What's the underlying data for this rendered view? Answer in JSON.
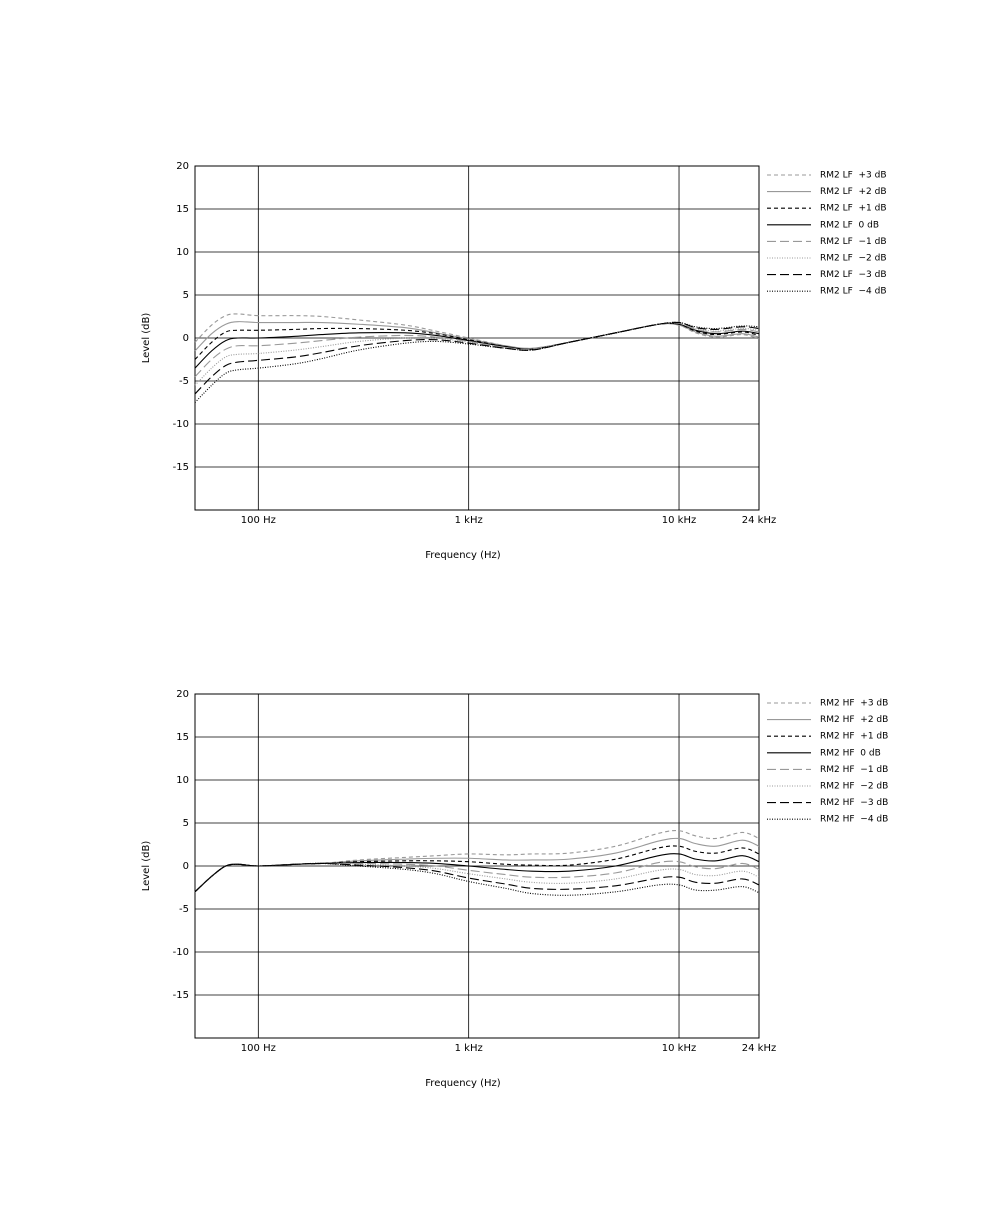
{
  "chart_data": [
    {
      "type": "line",
      "xlabel": "Frequency (Hz)",
      "ylabel": "Level (dB)",
      "xscale": "log",
      "grid": true,
      "xlim": [
        50,
        24000
      ],
      "ylim": [
        -20,
        20
      ],
      "xticks": [
        {
          "value": 100,
          "label": "100 Hz"
        },
        {
          "value": 1000,
          "label": "1 kHz"
        },
        {
          "value": 10000,
          "label": "10 kHz"
        },
        {
          "value": 24000,
          "label": "24 kHz"
        }
      ],
      "yticks": [
        20,
        15,
        10,
        5,
        0,
        -5,
        -10,
        -15
      ],
      "x": [
        50,
        60,
        70,
        80,
        100,
        150,
        200,
        300,
        500,
        700,
        1000,
        1500,
        2000,
        3000,
        5000,
        8000,
        10000,
        12000,
        15000,
        20000,
        24000
      ],
      "series": [
        {
          "name": "RM2 LF  +3 dB",
          "color": "#999999",
          "style": "dashed",
          "values": [
            -0.5,
            1.5,
            2.6,
            2.8,
            2.6,
            2.6,
            2.5,
            2.1,
            1.5,
            0.8,
            0,
            -0.9,
            -1.2,
            -0.5,
            0.6,
            1.6,
            1.5,
            0.6,
            0.1,
            0.4,
            -0.1
          ]
        },
        {
          "name": "RM2 LF  +2 dB",
          "color": "#999999",
          "style": "solid",
          "values": [
            -1.5,
            0.5,
            1.6,
            1.9,
            1.8,
            1.8,
            1.8,
            1.6,
            1.2,
            0.6,
            -0.1,
            -0.9,
            -1.2,
            -0.5,
            0.6,
            1.6,
            1.5,
            0.7,
            0.2,
            0.5,
            0.1
          ]
        },
        {
          "name": "RM2 LF  +1 dB",
          "color": "#000000",
          "style": "dashed",
          "values": [
            -2.5,
            -0.5,
            0.7,
            0.9,
            0.9,
            1.0,
            1.1,
            1.1,
            0.9,
            0.5,
            -0.2,
            -1,
            -1.3,
            -0.5,
            0.6,
            1.6,
            1.6,
            0.8,
            0.4,
            0.7,
            0.3
          ]
        },
        {
          "name": "RM2 LF  0 dB",
          "color": "#000000",
          "style": "solid",
          "values": [
            -3.5,
            -1.5,
            -0.3,
            0,
            0,
            0.2,
            0.4,
            0.6,
            0.6,
            0.3,
            -0.3,
            -1,
            -1.3,
            -0.5,
            0.6,
            1.6,
            1.6,
            0.9,
            0.5,
            0.8,
            0.5
          ]
        },
        {
          "name": "RM2 LF  −1 dB",
          "color": "#999999",
          "style": "long-dash",
          "values": [
            -4.5,
            -2.5,
            -1.3,
            -0.9,
            -0.9,
            -0.6,
            -0.3,
            0.1,
            0.3,
            0.1,
            -0.4,
            -1.1,
            -1.3,
            -0.5,
            0.6,
            1.6,
            1.7,
            1.0,
            0.7,
            1.0,
            0.7
          ]
        },
        {
          "name": "RM2 LF  −2 dB",
          "color": "#999999",
          "style": "dotted",
          "values": [
            -5.5,
            -3.5,
            -2.2,
            -1.9,
            -1.8,
            -1.4,
            -1.0,
            -0.4,
            0,
            0,
            -0.5,
            -1.1,
            -1.4,
            -0.5,
            0.6,
            1.6,
            1.7,
            1.1,
            0.8,
            1.1,
            0.9
          ]
        },
        {
          "name": "RM2 LF  −3 dB",
          "color": "#000000",
          "style": "long-dash",
          "values": [
            -6.5,
            -4.5,
            -3.2,
            -2.8,
            -2.6,
            -2.2,
            -1.7,
            -0.9,
            -0.3,
            -0.2,
            -0.6,
            -1.2,
            -1.4,
            -0.5,
            0.6,
            1.6,
            1.8,
            1.2,
            1.0,
            1.3,
            1.1
          ]
        },
        {
          "name": "RM2 LF  −4 dB",
          "color": "#000000",
          "style": "dotted",
          "values": [
            -7.5,
            -5.5,
            -4.1,
            -3.7,
            -3.5,
            -3.0,
            -2.4,
            -1.4,
            -0.6,
            -0.4,
            -0.7,
            -1.2,
            -1.4,
            -0.5,
            0.6,
            1.6,
            1.8,
            1.3,
            1.1,
            1.4,
            1.3
          ]
        }
      ]
    },
    {
      "type": "line",
      "xlabel": "Frequency (Hz)",
      "ylabel": "Level (dB)",
      "xscale": "log",
      "grid": true,
      "xlim": [
        50,
        24000
      ],
      "ylim": [
        -20,
        20
      ],
      "xticks": [
        {
          "value": 100,
          "label": "100 Hz"
        },
        {
          "value": 1000,
          "label": "1 kHz"
        },
        {
          "value": 10000,
          "label": "10 kHz"
        },
        {
          "value": 24000,
          "label": "24 kHz"
        }
      ],
      "yticks": [
        20,
        15,
        10,
        5,
        0,
        -5,
        -10,
        -15
      ],
      "x": [
        50,
        60,
        70,
        80,
        100,
        150,
        200,
        300,
        500,
        700,
        1000,
        1500,
        2000,
        3000,
        5000,
        8000,
        10000,
        12000,
        15000,
        20000,
        24000
      ],
      "series": [
        {
          "name": "RM2 HF  +3 dB",
          "color": "#999999",
          "style": "dashed",
          "values": [
            -3,
            -1.2,
            0,
            0.2,
            0,
            0.2,
            0.3,
            0.7,
            1.0,
            1.2,
            1.4,
            1.3,
            1.4,
            1.5,
            2.3,
            3.8,
            4.1,
            3.5,
            3.2,
            3.9,
            3.2
          ]
        },
        {
          "name": "RM2 HF  +2 dB",
          "color": "#999999",
          "style": "solid",
          "values": [
            -3,
            -1.2,
            0,
            0.2,
            0,
            0.2,
            0.3,
            0.6,
            0.8,
            0.9,
            0.9,
            0.7,
            0.7,
            0.8,
            1.5,
            2.9,
            3.2,
            2.6,
            2.3,
            3.0,
            2.3
          ]
        },
        {
          "name": "RM2 HF  +1 dB",
          "color": "#000000",
          "style": "dashed",
          "values": [
            -3,
            -1.2,
            0,
            0.2,
            0,
            0.2,
            0.3,
            0.5,
            0.6,
            0.6,
            0.5,
            0.2,
            0.1,
            0.1,
            0.8,
            2.1,
            2.3,
            1.7,
            1.5,
            2.1,
            1.4
          ]
        },
        {
          "name": "RM2 HF  0 dB",
          "color": "#000000",
          "style": "solid",
          "values": [
            -3,
            -1.2,
            0,
            0.2,
            0,
            0.2,
            0.3,
            0.4,
            0.4,
            0.3,
            0,
            -0.4,
            -0.6,
            -0.6,
            0,
            1.2,
            1.4,
            0.8,
            0.6,
            1.2,
            0.5
          ]
        },
        {
          "name": "RM2 HF  −1 dB",
          "color": "#999999",
          "style": "long-dash",
          "values": [
            -3,
            -1.2,
            0,
            0.2,
            0,
            0.2,
            0.3,
            0.3,
            0.2,
            0,
            -0.5,
            -1.0,
            -1.3,
            -1.3,
            -0.8,
            0.4,
            0.5,
            -0.1,
            -0.3,
            0.3,
            -0.4
          ]
        },
        {
          "name": "RM2 HF  −2 dB",
          "color": "#999999",
          "style": "dotted",
          "values": [
            -3,
            -1.2,
            0,
            0.2,
            0,
            0.2,
            0.3,
            0.2,
            0,
            -0.3,
            -0.9,
            -1.5,
            -1.9,
            -2.0,
            -1.5,
            -0.5,
            -0.4,
            -1.0,
            -1.1,
            -0.6,
            -1.3
          ]
        },
        {
          "name": "RM2 HF  −3 dB",
          "color": "#000000",
          "style": "long-dash",
          "values": [
            -3,
            -1.2,
            0,
            0.2,
            0,
            0.2,
            0.3,
            0.1,
            -0.2,
            -0.6,
            -1.4,
            -2.1,
            -2.6,
            -2.7,
            -2.3,
            -1.4,
            -1.3,
            -1.9,
            -2.0,
            -1.5,
            -2.2
          ]
        },
        {
          "name": "RM2 HF  −4 dB",
          "color": "#000000",
          "style": "dotted",
          "values": [
            -3,
            -1.2,
            0,
            0.2,
            0,
            0.2,
            0.3,
            0,
            -0.4,
            -0.9,
            -1.8,
            -2.6,
            -3.2,
            -3.4,
            -3.0,
            -2.2,
            -2.2,
            -2.8,
            -2.8,
            -2.4,
            -3.1
          ]
        }
      ]
    }
  ]
}
